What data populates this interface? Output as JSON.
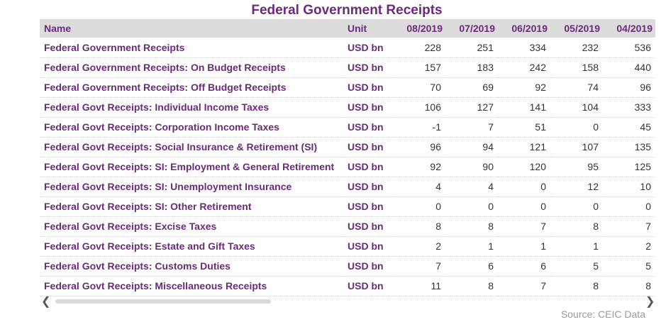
{
  "title": "Federal Government Receipts",
  "columns": {
    "name": "Name",
    "unit": "Unit",
    "periods": [
      "08/2019",
      "07/2019",
      "06/2019",
      "05/2019",
      "04/2019"
    ]
  },
  "rows": [
    {
      "name": "Federal Government Receipts",
      "unit": "USD bn",
      "values": [
        "228",
        "251",
        "334",
        "232",
        "536"
      ]
    },
    {
      "name": "Federal Government Receipts: On Budget Receipts",
      "unit": "USD bn",
      "values": [
        "157",
        "183",
        "242",
        "158",
        "440"
      ]
    },
    {
      "name": "Federal Government Receipts: Off Budget Receipts",
      "unit": "USD bn",
      "values": [
        "70",
        "69",
        "92",
        "74",
        "96"
      ]
    },
    {
      "name": "Federal Govt Receipts: Individual Income Taxes",
      "unit": "USD bn",
      "values": [
        "106",
        "127",
        "141",
        "104",
        "333"
      ]
    },
    {
      "name": "Federal Govt Receipts: Corporation Income Taxes",
      "unit": "USD bn",
      "values": [
        "-1",
        "7",
        "51",
        "0",
        "45"
      ]
    },
    {
      "name": "Federal Govt Receipts: Social Insurance & Retirement (SI)",
      "unit": "USD bn",
      "values": [
        "96",
        "94",
        "121",
        "107",
        "135"
      ]
    },
    {
      "name": "Federal Govt Receipts: SI: Employment & General Retirement",
      "unit": "USD bn",
      "values": [
        "92",
        "90",
        "120",
        "95",
        "125"
      ]
    },
    {
      "name": "Federal Govt Receipts: SI: Unemployment Insurance",
      "unit": "USD bn",
      "values": [
        "4",
        "4",
        "0",
        "12",
        "10"
      ]
    },
    {
      "name": "Federal Govt Receipts: SI: Other Retirement",
      "unit": "USD bn",
      "values": [
        "0",
        "0",
        "0",
        "0",
        "0"
      ]
    },
    {
      "name": "Federal Govt Receipts: Excise Taxes",
      "unit": "USD bn",
      "values": [
        "8",
        "8",
        "7",
        "8",
        "7"
      ]
    },
    {
      "name": "Federal Govt Receipts: Estate and Gift Taxes",
      "unit": "USD bn",
      "values": [
        "2",
        "1",
        "1",
        "1",
        "2"
      ]
    },
    {
      "name": "Federal Govt Receipts: Customs Duties",
      "unit": "USD bn",
      "values": [
        "7",
        "6",
        "6",
        "5",
        "5"
      ]
    },
    {
      "name": "Federal Govt Receipts: Miscellaneous Receipts",
      "unit": "USD bn",
      "values": [
        "11",
        "8",
        "7",
        "8",
        "8"
      ]
    }
  ],
  "scroll": {
    "left_icon": "chevron-left-icon",
    "right_icon": "chevron-right-icon"
  },
  "source": "Source: CEIC Data",
  "colors": {
    "accent": "#6b2a7a",
    "header_bg": "#dcdcdc",
    "source_text": "#9a9a9a"
  }
}
